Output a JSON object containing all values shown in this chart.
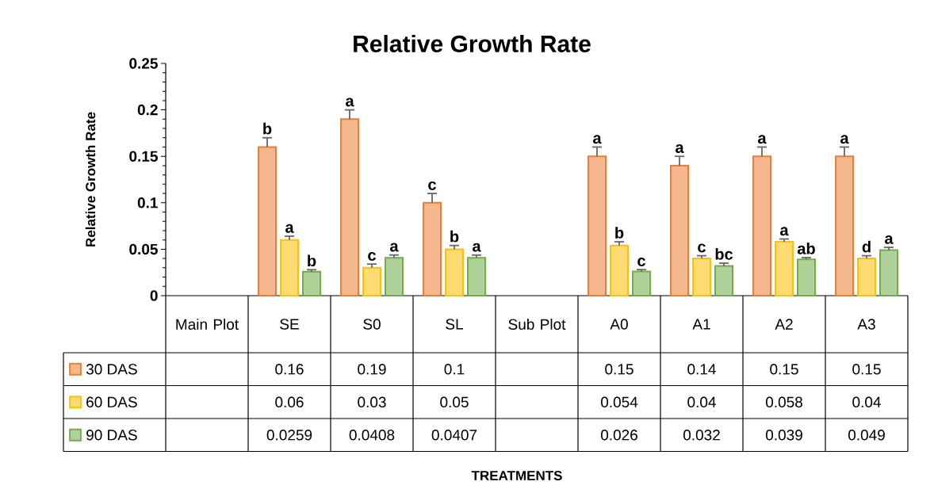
{
  "chart_data": {
    "type": "bar",
    "title": "Relative Growth Rate",
    "ylabel": "Relative Growth Rate",
    "categories": [
      "Main Plot",
      "SE",
      "S0",
      "SL",
      "Sub Plot",
      "A0",
      "A1",
      "A2",
      "A3"
    ],
    "series": [
      {
        "name": "30 DAS",
        "color": "#ed7d31",
        "values": [
          null,
          0.16,
          0.19,
          0.1,
          null,
          0.15,
          0.14,
          0.15,
          0.15
        ],
        "value_labels": [
          null,
          "0.16",
          "0.19",
          "0.1",
          null,
          "0.15",
          "0.14",
          "0.15",
          "0.15"
        ],
        "errors": [
          null,
          0.01,
          0.01,
          0.01,
          null,
          0.01,
          0.01,
          0.01,
          0.01
        ]
      },
      {
        "name": "60 DAS",
        "color": "#ffc000",
        "values": [
          null,
          0.06,
          0.03,
          0.05,
          null,
          0.054,
          0.04,
          0.058,
          0.04
        ],
        "value_labels": [
          null,
          "0.06",
          "0.03",
          "0.05",
          null,
          "0.054",
          "0.04",
          "0.058",
          "0.04"
        ],
        "errors": [
          null,
          0.004,
          0.004,
          0.004,
          null,
          0.004,
          0.003,
          0.003,
          0.003
        ]
      },
      {
        "name": "90 DAS",
        "color": "#70ad47",
        "values": [
          null,
          0.0259,
          0.0408,
          0.0407,
          null,
          0.026,
          0.032,
          0.039,
          0.049
        ],
        "value_labels": [
          null,
          "0.0259",
          "0.0408",
          "0.0407",
          null,
          "0.026",
          "0.032",
          "0.039",
          "0.049"
        ],
        "errors": [
          null,
          0.002,
          0.003,
          0.003,
          null,
          0.002,
          0.003,
          0.002,
          0.003
        ]
      }
    ],
    "ylim": [
      0,
      0.25
    ],
    "yticks": [
      0,
      0.05,
      0.1,
      0.15,
      0.2,
      0.25
    ],
    "legend": "bottom",
    "annotations": [
      "b",
      "a",
      "b",
      "a",
      "c",
      "a",
      "c",
      "b",
      "a",
      "a",
      "b",
      "c",
      "a",
      "c",
      "bc",
      "a",
      "a",
      "ab",
      "a",
      "d",
      "a",
      "TREATMENTS"
    ]
  }
}
